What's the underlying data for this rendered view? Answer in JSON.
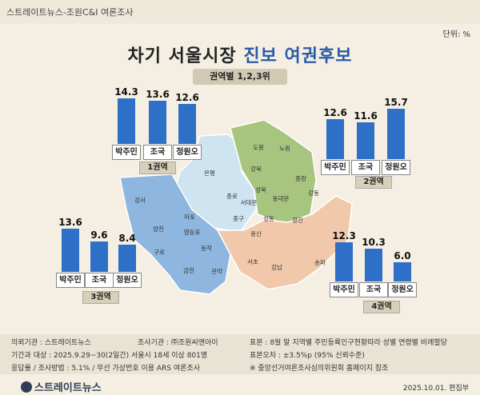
{
  "header": {
    "source_credit": "스트레이트뉴스-조원C&I 여론조사",
    "unit": "단위: %"
  },
  "title": {
    "part1": "차기 서울시장",
    "part2": "진보 여권후보",
    "subtitle": "권역별 1,2,3위"
  },
  "colors": {
    "bar": "#2e6fc7",
    "zone1": "#cfe4f1",
    "zone2": "#a8c57f",
    "zone3": "#8fb6de",
    "zone4": "#f1c9aa",
    "title_accent": "#2a5aa8"
  },
  "chart_data": {
    "type": "bar",
    "title": "차기 서울시장 진보 여권후보",
    "subtitle": "권역별 1,2,3위",
    "unit": "%",
    "regions": [
      {
        "name": "1권역",
        "candidates": [
          "박주민",
          "조국",
          "정원오"
        ],
        "values": [
          14.3,
          13.6,
          12.6
        ]
      },
      {
        "name": "2권역",
        "candidates": [
          "박주민",
          "조국",
          "정원오"
        ],
        "values": [
          12.6,
          11.6,
          15.7
        ]
      },
      {
        "name": "3권역",
        "candidates": [
          "박주민",
          "조국",
          "정원오"
        ],
        "values": [
          13.6,
          9.6,
          8.4
        ]
      },
      {
        "name": "4권역",
        "candidates": [
          "박주민",
          "조국",
          "정원오"
        ],
        "values": [
          12.3,
          10.3,
          6.0
        ]
      }
    ]
  },
  "map": {
    "districts": [
      "도봉",
      "노원",
      "강북",
      "성북",
      "중랑",
      "은평",
      "종로",
      "동대문",
      "서대문",
      "중구",
      "성동",
      "광진",
      "마포",
      "용산",
      "강동",
      "강서",
      "양천",
      "영등포",
      "동작",
      "구로",
      "서초",
      "강남",
      "송파",
      "금천",
      "관악"
    ]
  },
  "footer": {
    "line1_left": "의뢰기관 : 스트레이트뉴스",
    "line1_mid": "조사기관 : ㈜조원씨앤아이",
    "line1_right": "표본 : 8월 말 지역별 주민등록인구현황따라 성별 연령별 비례할당",
    "line2_left": "기간과 대상 : 2025.9.29~30(2일간) 서울시  18세 이상 801명",
    "line2_right": "표본오차 : ±3.5%p (95% 신뢰수준)",
    "line3_left": "응답률 / 조사방법 : 5.1% / 무선 가상번호 이용 ARS 여론조사",
    "line3_right": "※ 중앙선거여론조사심의위원회 홈페이지 참조",
    "logo": "스트레이트뉴스",
    "date": "2025.10.01. 편집부"
  }
}
